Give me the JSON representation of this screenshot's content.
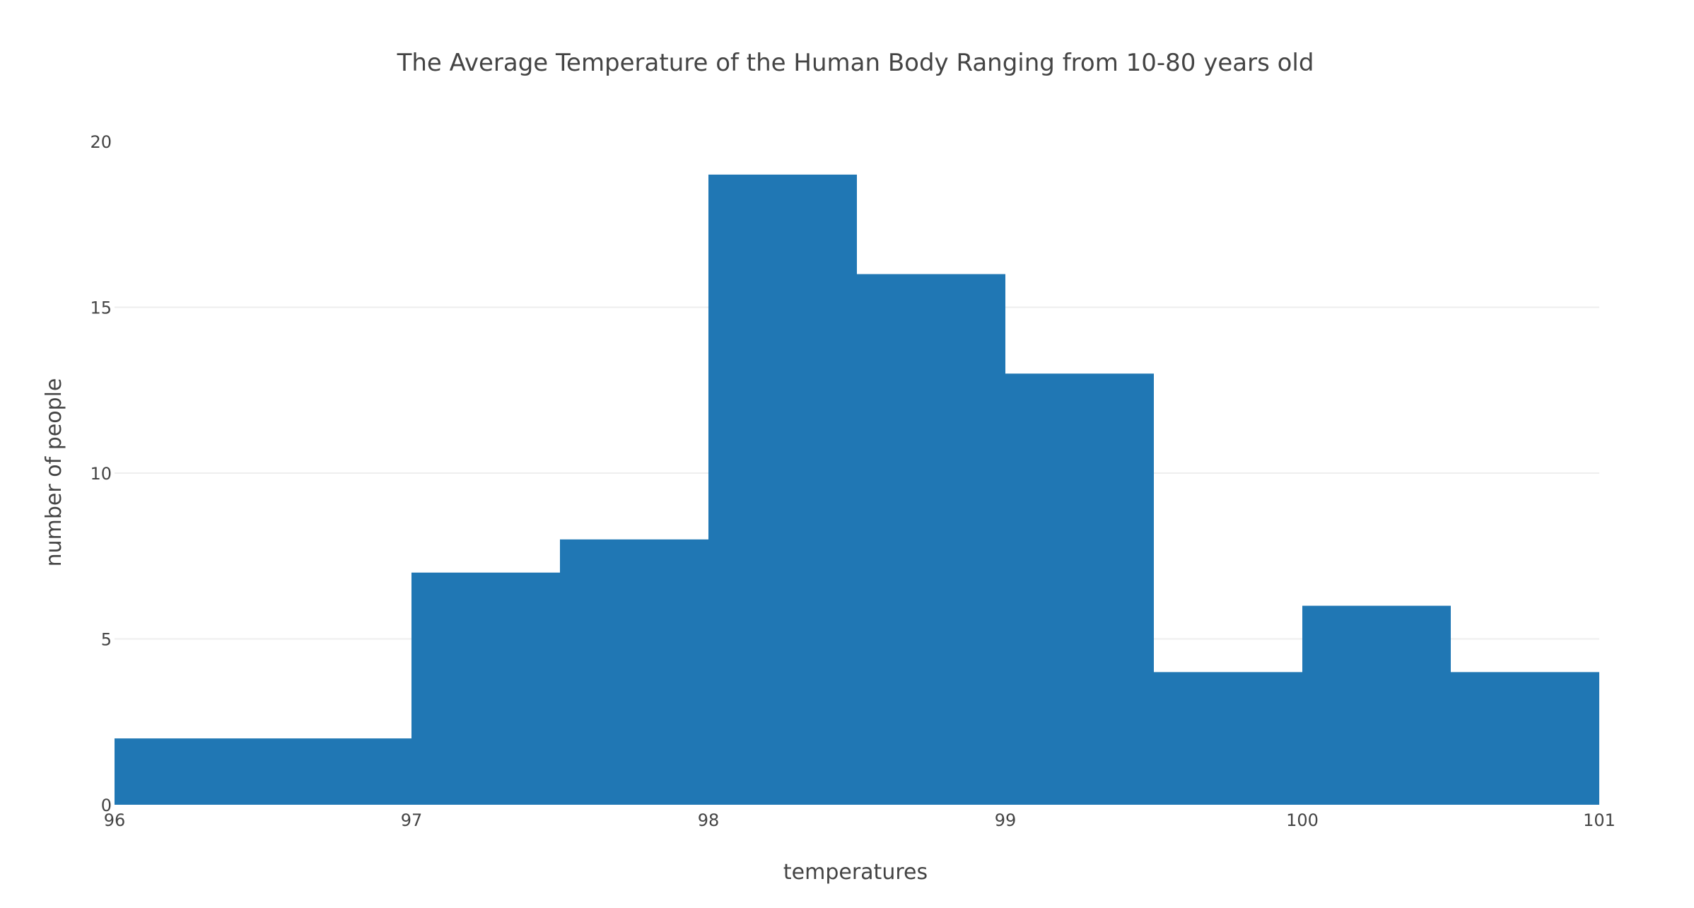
{
  "chart_data": {
    "type": "bar",
    "title": "The Average Temperature of the Human Body Ranging from 10-80 years old",
    "xlabel": "temperatures",
    "ylabel": "number of people",
    "xlim": [
      96,
      101
    ],
    "ylim": [
      0,
      20
    ],
    "x_ticks": [
      "96",
      "97",
      "98",
      "99",
      "100",
      "101"
    ],
    "y_ticks": [
      "0",
      "5",
      "10",
      "15",
      "20"
    ],
    "grid": true,
    "bar_color": "#2077b4",
    "bins": [
      {
        "start": 96,
        "end": 97,
        "value": 2
      },
      {
        "start": 97,
        "end": 97.5,
        "value": 7
      },
      {
        "start": 97.5,
        "end": 98,
        "value": 8
      },
      {
        "start": 98,
        "end": 98.5,
        "value": 19
      },
      {
        "start": 98.5,
        "end": 99,
        "value": 16
      },
      {
        "start": 99,
        "end": 99.5,
        "value": 13
      },
      {
        "start": 99.5,
        "end": 100,
        "value": 4
      },
      {
        "start": 100,
        "end": 100.5,
        "value": 6
      },
      {
        "start": 100.5,
        "end": 101,
        "value": 4
      }
    ]
  }
}
